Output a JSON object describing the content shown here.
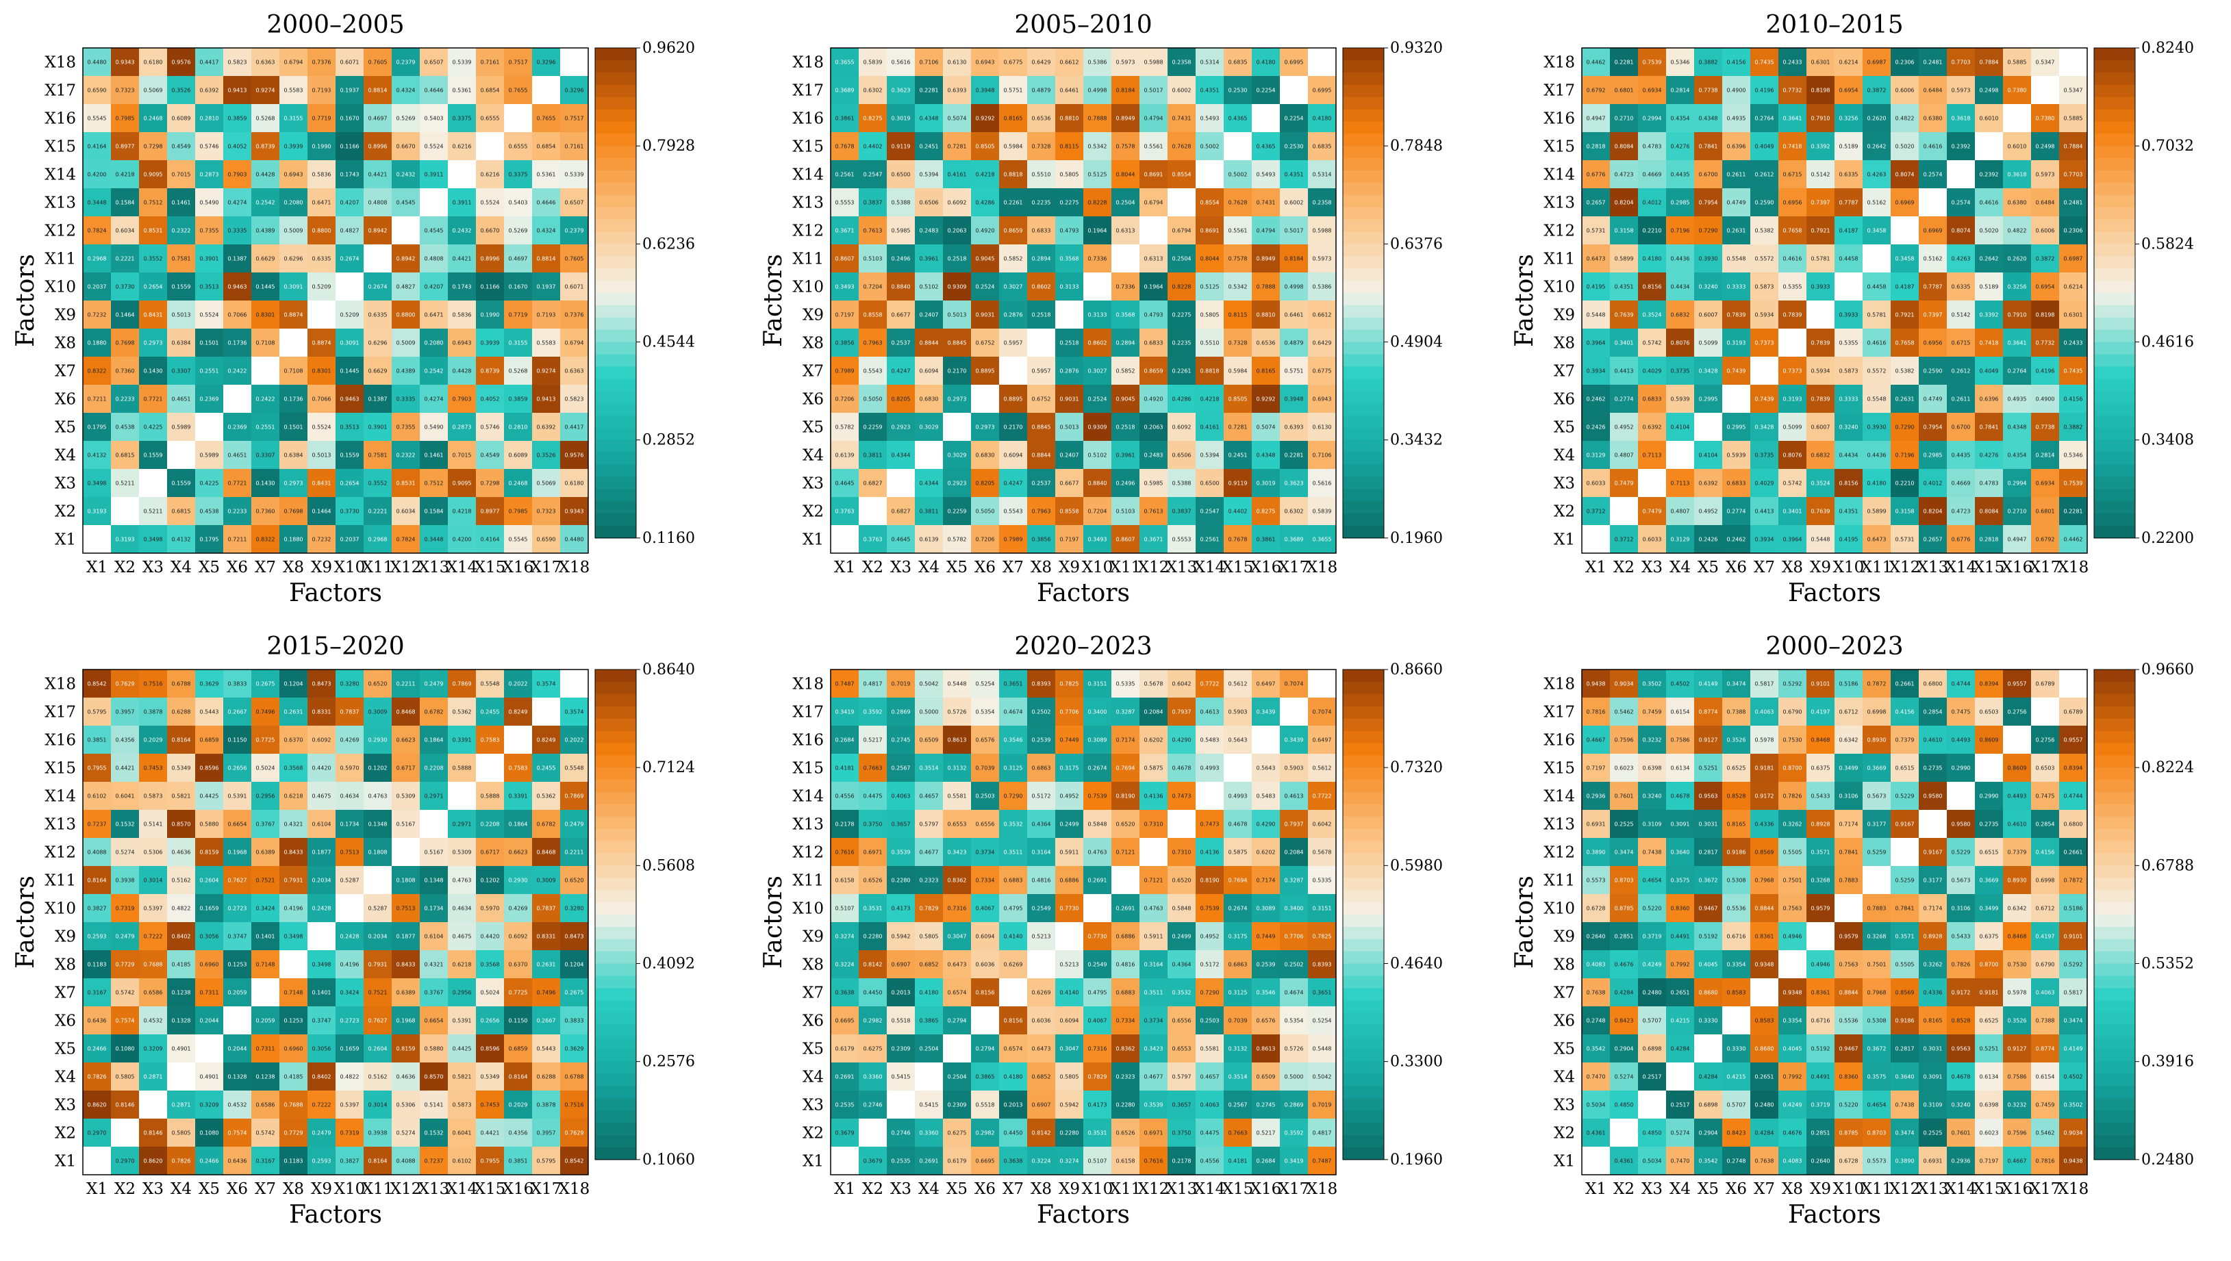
{
  "figure": {
    "ylabel": "Factors",
    "xlabel": "Factors"
  },
  "colormap": {
    "stops": [
      "#0a6b66",
      "#16a8a0",
      "#2ccfc4",
      "#f5f2e8",
      "#fbbf7c",
      "#f47f0f",
      "#8f3a06"
    ],
    "diagonal": "#ffffff"
  },
  "chart_data": [
    {
      "type": "heatmap",
      "title": "2000–2005",
      "xlabel": "Factors",
      "ylabel": "Factors",
      "labels": [
        "X1",
        "X2",
        "X3",
        "X4",
        "X5",
        "X6",
        "X7",
        "X8",
        "X9",
        "X10",
        "X11",
        "X12",
        "X13",
        "X14",
        "X15",
        "X16",
        "X17",
        "X18"
      ],
      "vmin": 0.116,
      "vmax": 0.962,
      "colorbar_ticks": [
        "0.1160",
        "0.2852",
        "0.4544",
        "0.6236",
        "0.7928",
        "0.9620"
      ],
      "seed": 11
    },
    {
      "type": "heatmap",
      "title": "2005–2010",
      "xlabel": "Factors",
      "ylabel": "Factors",
      "labels": [
        "X1",
        "X2",
        "X3",
        "X4",
        "X5",
        "X6",
        "X7",
        "X8",
        "X9",
        "X10",
        "X11",
        "X12",
        "X13",
        "X14",
        "X15",
        "X16",
        "X17",
        "X18"
      ],
      "vmin": 0.196,
      "vmax": 0.932,
      "colorbar_ticks": [
        "0.1960",
        "0.3432",
        "0.4904",
        "0.6376",
        "0.7848",
        "0.9320"
      ],
      "seed": 23
    },
    {
      "type": "heatmap",
      "title": "2010–2015",
      "xlabel": "Factors",
      "ylabel": "Factors",
      "labels": [
        "X1",
        "X2",
        "X3",
        "X4",
        "X5",
        "X6",
        "X7",
        "X8",
        "X9",
        "X10",
        "X11",
        "X12",
        "X13",
        "X14",
        "X15",
        "X16",
        "X17",
        "X18"
      ],
      "vmin": 0.22,
      "vmax": 0.824,
      "colorbar_ticks": [
        "0.2200",
        "0.3408",
        "0.4616",
        "0.5824",
        "0.7032",
        "0.8240"
      ],
      "seed": 37
    },
    {
      "type": "heatmap",
      "title": "2015–2020",
      "xlabel": "Factors",
      "ylabel": "Factors",
      "labels": [
        "X1",
        "X2",
        "X3",
        "X4",
        "X5",
        "X6",
        "X7",
        "X8",
        "X9",
        "X10",
        "X11",
        "X12",
        "X13",
        "X14",
        "X15",
        "X16",
        "X17",
        "X18"
      ],
      "vmin": 0.106,
      "vmax": 0.864,
      "colorbar_ticks": [
        "0.1060",
        "0.2576",
        "0.4092",
        "0.5608",
        "0.7124",
        "0.8640"
      ],
      "seed": 41
    },
    {
      "type": "heatmap",
      "title": "2020–2023",
      "xlabel": "Factors",
      "ylabel": "Factors",
      "labels": [
        "X1",
        "X2",
        "X3",
        "X4",
        "X5",
        "X6",
        "X7",
        "X8",
        "X9",
        "X10",
        "X11",
        "X12",
        "X13",
        "X14",
        "X15",
        "X16",
        "X17",
        "X18"
      ],
      "vmin": 0.196,
      "vmax": 0.866,
      "colorbar_ticks": [
        "0.1960",
        "0.3300",
        "0.4640",
        "0.5980",
        "0.7320",
        "0.8660"
      ],
      "seed": 53
    },
    {
      "type": "heatmap",
      "title": "2000–2023",
      "xlabel": "Factors",
      "ylabel": "Factors",
      "labels": [
        "X1",
        "X2",
        "X3",
        "X4",
        "X5",
        "X6",
        "X7",
        "X8",
        "X9",
        "X10",
        "X11",
        "X12",
        "X13",
        "X14",
        "X15",
        "X16",
        "X17",
        "X18"
      ],
      "vmin": 0.248,
      "vmax": 0.966,
      "colorbar_ticks": [
        "0.2480",
        "0.3916",
        "0.5352",
        "0.6788",
        "0.8224",
        "0.9660"
      ],
      "seed": 67
    }
  ]
}
